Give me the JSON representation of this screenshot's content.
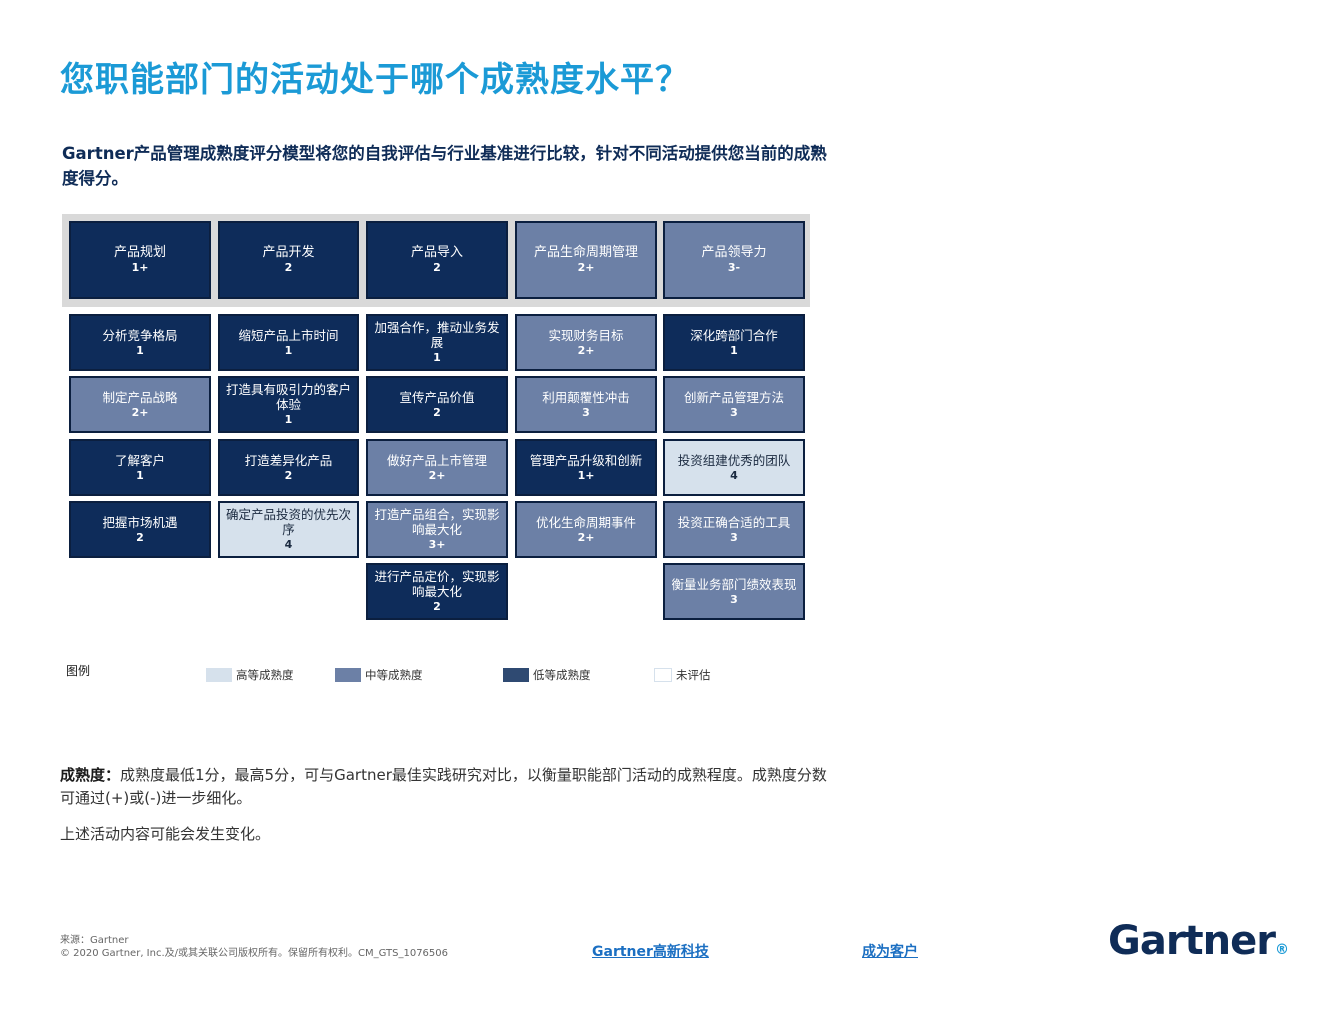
{
  "title": "您职能部门的活动处于哪个成熟度水平？",
  "subtitle": "Gartner产品管理成熟度评分模型将您的自我评估与行业基准进行比较，针对不同活动提供您当前的成熟度得分。",
  "columns": [
    {
      "name": "产品规划",
      "score": "1+"
    },
    {
      "name": "产品开发",
      "score": "2"
    },
    {
      "name": "产品导入",
      "score": "2"
    },
    {
      "name": "产品生命周期管理",
      "score": "2+"
    },
    {
      "name": "产品领导力",
      "score": "3-"
    }
  ],
  "cells": [
    [
      {
        "name": "分析竞争格局",
        "score": "1"
      },
      {
        "name": "制定产品战略",
        "score": "2+"
      },
      {
        "name": "了解客户",
        "score": "1"
      },
      {
        "name": "把握市场机遇",
        "score": "2"
      }
    ],
    [
      {
        "name": "缩短产品上市时间",
        "score": "1"
      },
      {
        "name": "打造具有吸引力的客户体验",
        "score": "1"
      },
      {
        "name": "打造差异化产品",
        "score": "2"
      },
      {
        "name": "确定产品投资的优先次序",
        "score": "4"
      }
    ],
    [
      {
        "name": "加强合作，推动业务发展",
        "score": "1"
      },
      {
        "name": "宣传产品价值",
        "score": "2"
      },
      {
        "name": "做好产品上市管理",
        "score": "2+"
      },
      {
        "name": "打造产品组合，实现影响最大化",
        "score": "3+"
      },
      {
        "name": "进行产品定价，实现影响最大化",
        "score": "2"
      }
    ],
    [
      {
        "name": "实现财务目标",
        "score": "2+"
      },
      {
        "name": "利用颠覆性冲击",
        "score": "3"
      },
      {
        "name": "管理产品升级和创新",
        "score": "1+"
      },
      {
        "name": "优化生命周期事件",
        "score": "2+"
      }
    ],
    [
      {
        "name": "深化跨部门合作",
        "score": "1"
      },
      {
        "name": "创新产品管理方法",
        "score": "3"
      },
      {
        "name": "投资组建优秀的团队",
        "score": "4"
      },
      {
        "name": "投资正确合适的工具",
        "score": "3"
      },
      {
        "name": "衡量业务部门绩效表现",
        "score": "3"
      }
    ]
  ],
  "legend": {
    "label": "图例",
    "items": [
      {
        "label": "高等成熟度",
        "color": "#d6e1ec"
      },
      {
        "label": "中等成熟度",
        "color": "#6c80a6"
      },
      {
        "label": "低等成熟度",
        "color": "#0e2c5a"
      },
      {
        "label": "未评估",
        "color": "#ffffff"
      }
    ]
  },
  "note1_label": "成熟度：",
  "note1_text": "成熟度最低1分，最高5分，可与Gartner最佳实践研究对比，以衡量职能部门活动的成熟程度。成熟度分数可通过(+)或(-)进一步细化。",
  "note2": "上述活动内容可能会发生变化。",
  "footer": {
    "source": "来源：Gartner",
    "copyright": "© 2020 Gartner, Inc.及/或其关联公司版权所有。保留所有权利。CM_GTS_1076506",
    "link1": "Gartner高新科技",
    "link2": "成为客户",
    "logo": "Gartner",
    "logo_mark": "®"
  }
}
